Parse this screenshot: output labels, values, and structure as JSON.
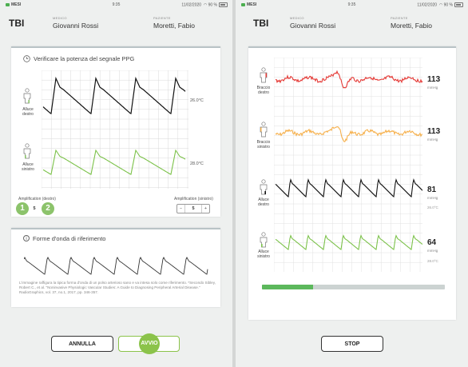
{
  "left": {
    "status": {
      "carrier": "MESI",
      "time": "9:35",
      "date": "11/02/2020",
      "battery": "90 %"
    },
    "header": {
      "logo": "TBI",
      "doctor_label": "MEDICO",
      "doctor_name": "Giovanni Rossi",
      "patient_label": "PAZIENTE",
      "patient_name": "Moretti, Fabio"
    },
    "ppg": {
      "title": "Verificare la potenza del segnale PPG",
      "right_label": "Alluce\ndestro",
      "left_label": "Alluce\nsinistro",
      "temp_right": "26.0°C",
      "temp_left": "28.0°C",
      "amp_right_label": "Amplification (destro)",
      "amp_left_label": "Amplification (sinistro)",
      "amp_right_value": "5",
      "amp_left_value": "5",
      "minus": "−",
      "plus": "+",
      "badge1": "1",
      "badge2": "2",
      "wave_colors": {
        "top": "#111111",
        "bottom": "#7cc24a"
      }
    },
    "reference": {
      "title": "Forme d'onda di riferimento",
      "text": "L'immagine raffigura la tipica forma d'onda di un polso arterioso sano e va intesa solo come riferimento. *Secondo Sibley, Robert C., et al. \"Noninvasive Physiologic Vascular Studies: A Guide to Diagnosing Peripheral Arterial Disease.\" RadioGraphics, vol. 37, no.1, 2017, pp. 346-357."
    },
    "buttons": {
      "cancel": "ANNULLA",
      "start": "AVVIO"
    }
  },
  "right": {
    "status": {
      "carrier": "MESI",
      "time": "9:35",
      "date": "11/02/2020",
      "battery": "90 %"
    },
    "header": {
      "logo": "TBI",
      "doctor_label": "MEDICO",
      "doctor_name": "Giovanni Rossi",
      "patient_label": "PAZIENTE",
      "patient_name": "Moretti, Fabio"
    },
    "channels": [
      {
        "label": "Braccio\ndestro",
        "value": "113",
        "unit": "mmHg",
        "temp": "",
        "color": "#e53935"
      },
      {
        "label": "Braccio\nsinistro",
        "value": "113",
        "unit": "mmHg",
        "temp": "",
        "color": "#f6b04b"
      },
      {
        "label": "Alluce\ndestro",
        "value": "81",
        "unit": "mmHg",
        "temp": "26.0°C",
        "color": "#111111"
      },
      {
        "label": "Alluce\nsinistro",
        "value": "64",
        "unit": "mmHg",
        "temp": "28.0°C",
        "color": "#7cc24a"
      }
    ],
    "progress_fraction": 0.28,
    "buttons": {
      "stop": "STOP"
    }
  }
}
